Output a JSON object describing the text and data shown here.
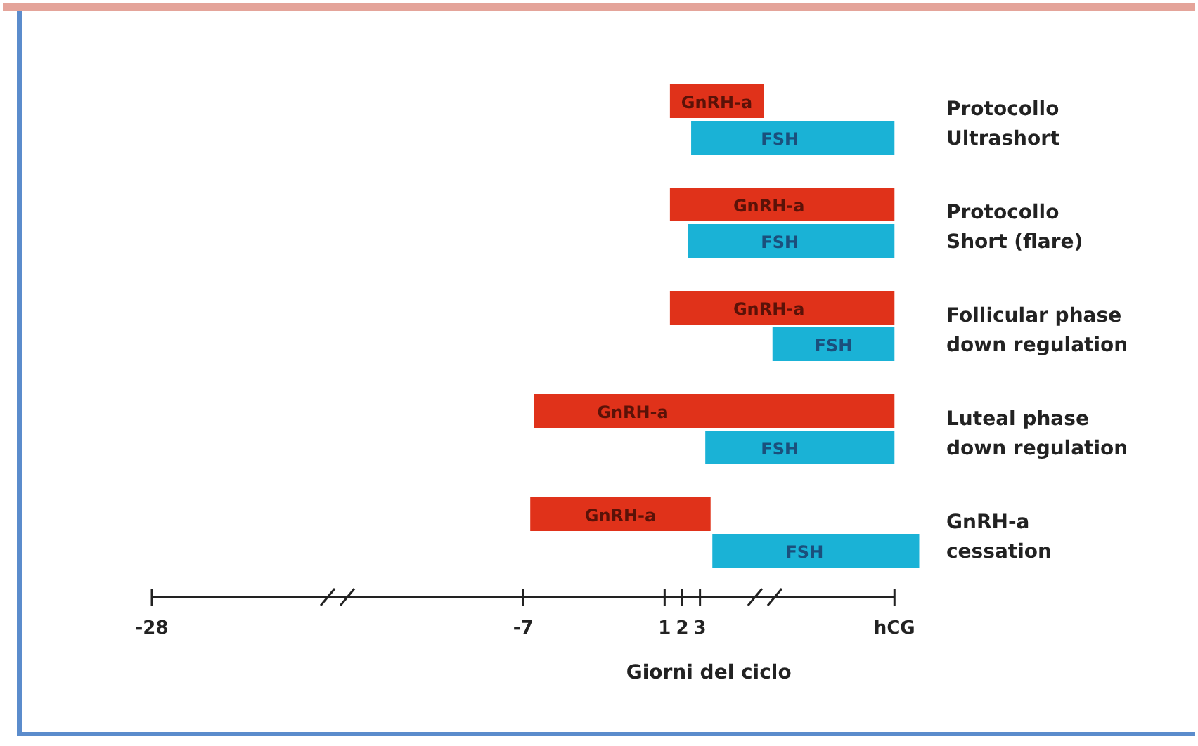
{
  "chart_data": {
    "type": "bar",
    "orientation": "horizontal",
    "xlabel": "Giorni del ciclo",
    "categories": [
      "Protocollo\nUltrashort",
      "Protocollo\nShort (flare)",
      "Follicular phase\ndown regulation",
      "Luteal phase\ndown regulation",
      "GnRH-a\ncessation"
    ],
    "series": [
      {
        "name": "GnRH-a",
        "color": "#e0321a",
        "base": [
          1.3,
          1.3,
          1.3,
          -6.4,
          -6.6
        ],
        "values": [
          5.3,
          12.7,
          12.7,
          20.4,
          10.2
        ]
      },
      {
        "name": "FSH",
        "color": "#1ab2d6",
        "base": [
          2.5,
          2.3,
          7.1,
          3.3,
          3.7
        ],
        "values": [
          11.5,
          11.7,
          6.9,
          10.7,
          11.7
        ]
      }
    ],
    "xlim": [
      -28,
      15.5
    ],
    "xticks": [
      -28,
      -7,
      1,
      2,
      3,
      {
        "value": 14,
        "label": "hCG"
      }
    ],
    "grid": false,
    "legend": false
  }
}
